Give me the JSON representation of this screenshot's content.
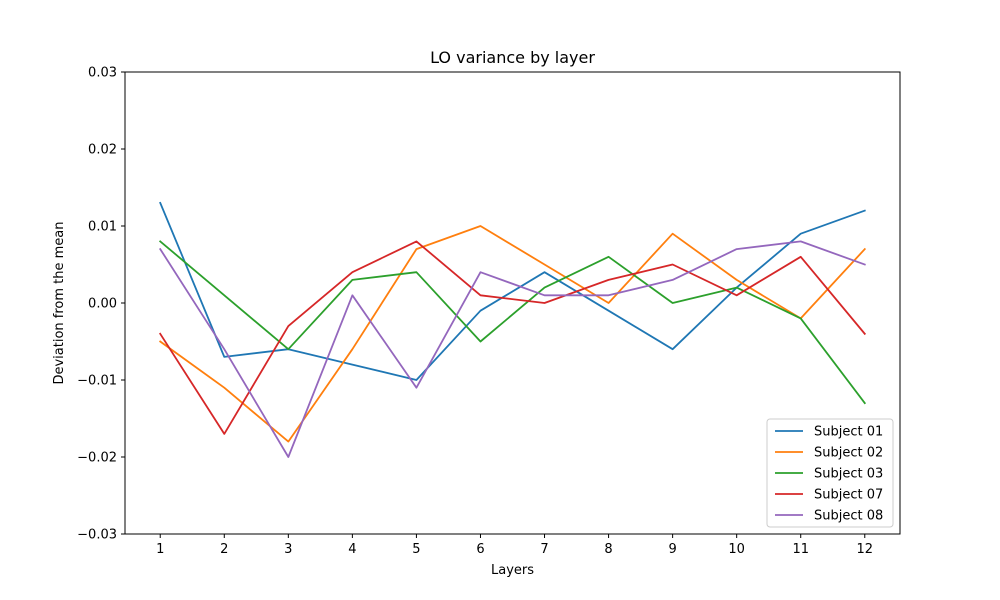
{
  "chart_data": {
    "type": "line",
    "title": "LO variance by layer",
    "xlabel": "Layers",
    "ylabel": "Deviation from the mean",
    "x": [
      1,
      2,
      3,
      4,
      5,
      6,
      7,
      8,
      9,
      10,
      11,
      12
    ],
    "xticks": [
      "1",
      "2",
      "3",
      "4",
      "5",
      "6",
      "7",
      "8",
      "9",
      "10",
      "11",
      "12"
    ],
    "xlim": [
      0.45,
      12.55
    ],
    "ylim": [
      -0.03,
      0.03
    ],
    "yticks": [
      "−0.03",
      "−0.02",
      "−0.01",
      "0.00",
      "0.01",
      "0.02",
      "0.03"
    ],
    "ytick_values": [
      -0.03,
      -0.02,
      -0.01,
      0.0,
      0.01,
      0.02,
      0.03
    ],
    "grid": false,
    "legend_position": "lower-right",
    "series": [
      {
        "name": "Subject 01",
        "color": "#1f77b4",
        "values": [
          0.013,
          -0.007,
          -0.006,
          -0.008,
          -0.01,
          -0.001,
          0.004,
          -0.001,
          -0.006,
          0.002,
          0.009,
          0.012
        ]
      },
      {
        "name": "Subject 02",
        "color": "#ff7f0e",
        "values": [
          -0.005,
          -0.011,
          -0.018,
          -0.006,
          0.007,
          0.01,
          0.005,
          0.0,
          0.009,
          0.003,
          -0.002,
          0.007
        ]
      },
      {
        "name": "Subject 03",
        "color": "#2ca02c",
        "values": [
          0.008,
          0.001,
          -0.006,
          0.003,
          0.004,
          -0.005,
          0.002,
          0.006,
          0.0,
          0.002,
          -0.002,
          -0.013
        ]
      },
      {
        "name": "Subject 07",
        "color": "#d62728",
        "values": [
          -0.004,
          -0.017,
          -0.003,
          0.004,
          0.008,
          0.001,
          0.0,
          0.003,
          0.005,
          0.001,
          0.006,
          -0.004
        ]
      },
      {
        "name": "Subject 08",
        "color": "#9467bd",
        "values": [
          0.007,
          -0.006,
          -0.02,
          0.001,
          -0.011,
          0.004,
          0.001,
          0.001,
          0.003,
          0.007,
          0.008,
          0.005
        ]
      }
    ]
  }
}
